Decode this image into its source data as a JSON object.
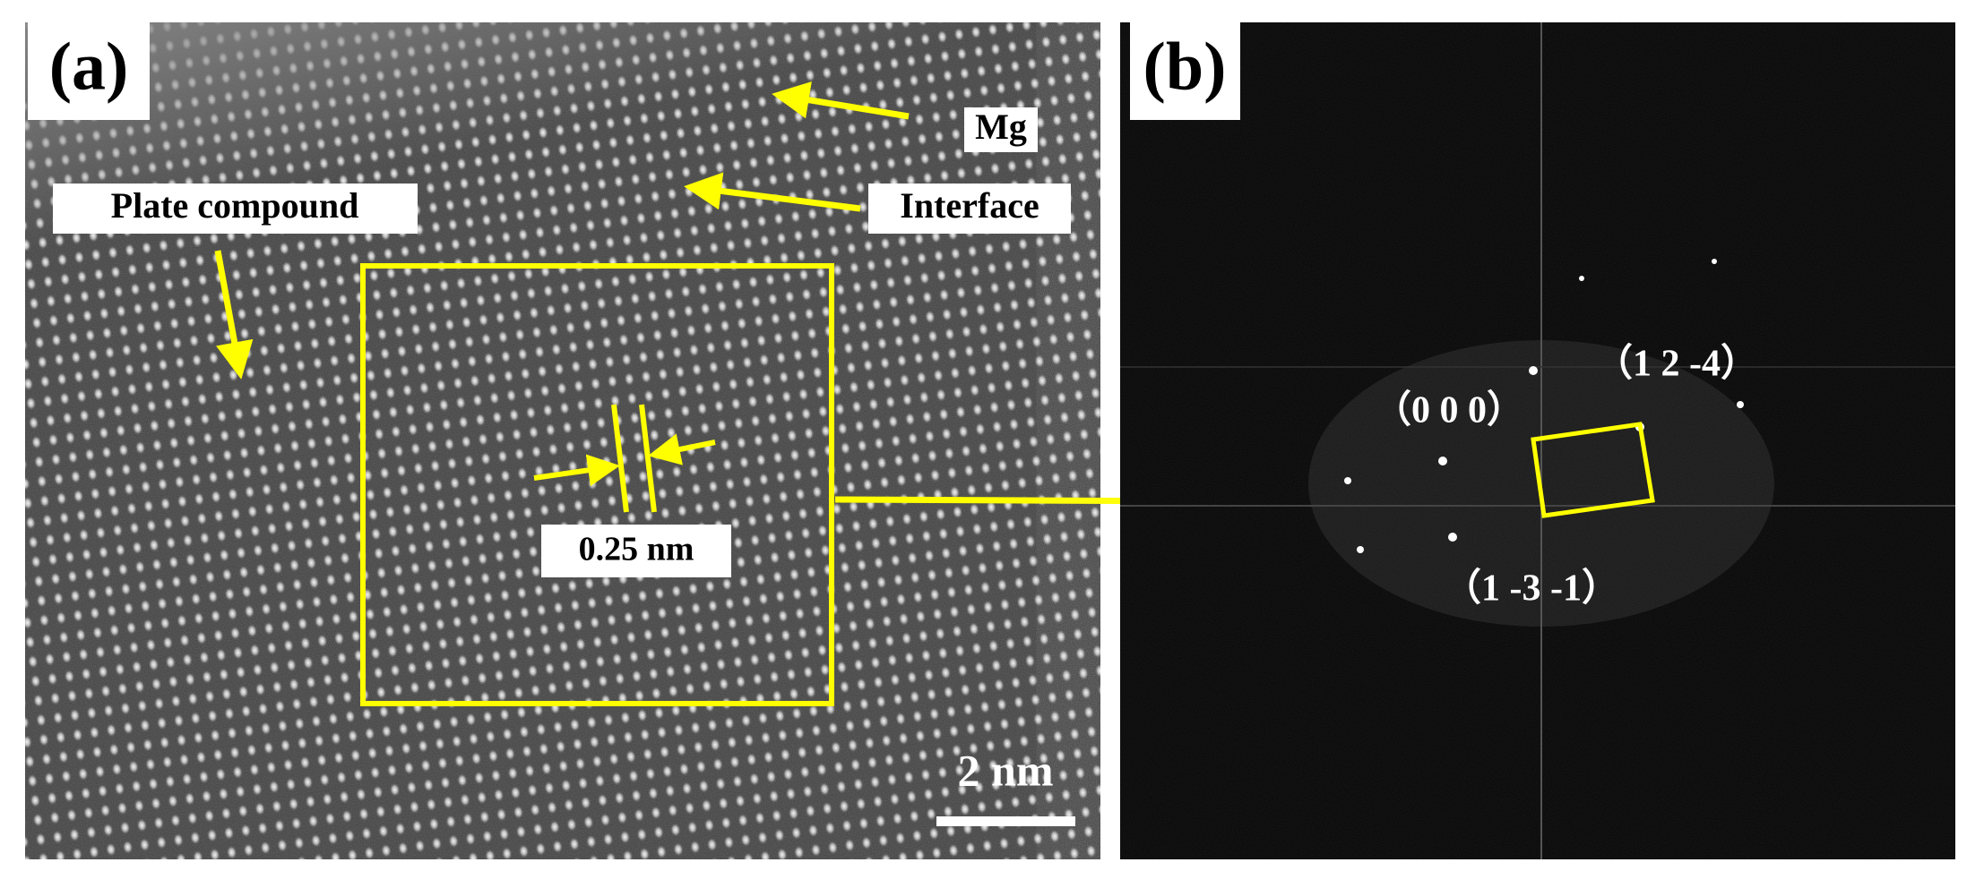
{
  "panels": [
    {
      "label": "(a)",
      "annotations": [
        "Mg",
        "Interface",
        "Plate compound"
      ],
      "spacing_label": "0.25 nm",
      "scale_bar": "2 nm"
    },
    {
      "label": "(b)",
      "spots": [
        "（0 0 0）",
        "（1 2 -4）",
        "（1 -3 -1）"
      ]
    }
  ]
}
